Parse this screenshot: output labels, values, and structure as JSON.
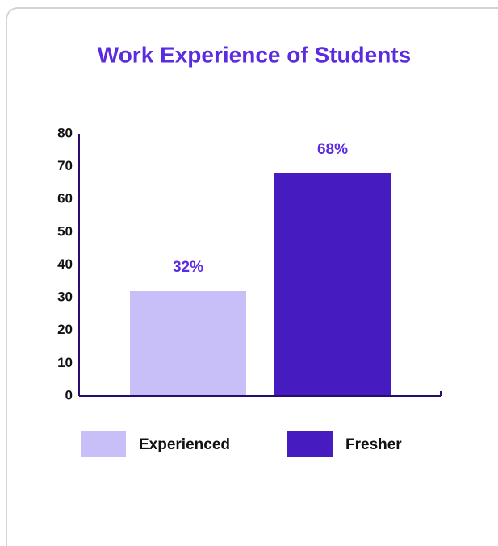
{
  "chart_data": {
    "type": "bar",
    "title": "Work Experience of Students",
    "categories": [
      "Experienced",
      "Fresher"
    ],
    "values": [
      32,
      68
    ],
    "value_labels": [
      "32%",
      "68%"
    ],
    "colors": [
      "#c8bff8",
      "#461cc0"
    ],
    "ylim": [
      0,
      80
    ],
    "yticks": [
      0,
      10,
      20,
      30,
      40,
      50,
      60,
      70,
      80
    ],
    "grid": false,
    "legend": "bottom"
  }
}
